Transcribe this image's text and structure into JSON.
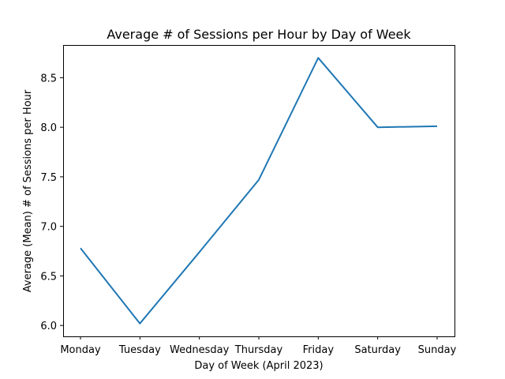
{
  "chart_data": {
    "type": "line",
    "title": "Average # of Sessions per Hour by Day of Week",
    "xlabel": "Day of Week (April 2023)",
    "ylabel": "Average (Mean) # of Sessions per Hour",
    "categories": [
      "Monday",
      "Tuesday",
      "Wednesday",
      "Thursday",
      "Friday",
      "Saturday",
      "Sunday"
    ],
    "values": [
      6.78,
      6.02,
      6.74,
      7.47,
      8.7,
      8.0,
      8.01
    ],
    "ylim": [
      5.89,
      8.83
    ],
    "yticks": [
      "6.0",
      "6.5",
      "7.0",
      "7.5",
      "8.0",
      "8.5"
    ],
    "grid": false,
    "legend": "none",
    "line_color": "#1f77b4"
  }
}
